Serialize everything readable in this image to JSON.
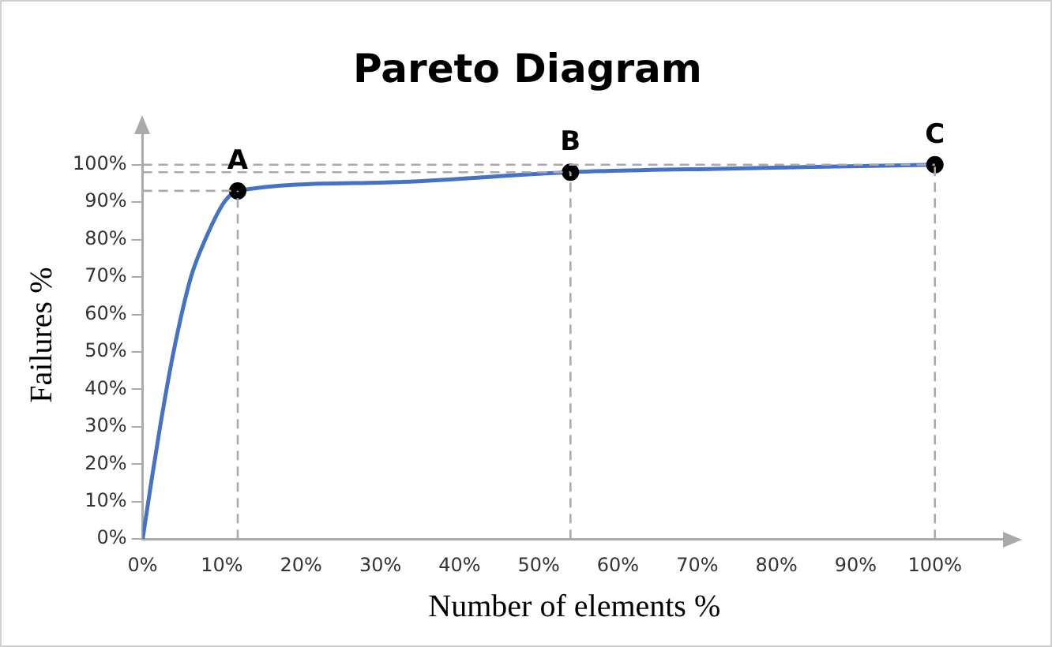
{
  "chart_data": {
    "type": "line",
    "title": "Pareto Diagram",
    "xlabel": "Number of elements %",
    "ylabel": "Failures %",
    "xlim": [
      0,
      109
    ],
    "ylim": [
      0,
      109
    ],
    "xticks": [
      {
        "value": 0,
        "label": "0%"
      },
      {
        "value": 10,
        "label": "10%"
      },
      {
        "value": 20,
        "label": "20%"
      },
      {
        "value": 30,
        "label": "30%"
      },
      {
        "value": 40,
        "label": "40%"
      },
      {
        "value": 50,
        "label": "50%"
      },
      {
        "value": 60,
        "label": "60%"
      },
      {
        "value": 70,
        "label": "70%"
      },
      {
        "value": 80,
        "label": "80%"
      },
      {
        "value": 90,
        "label": "90%"
      },
      {
        "value": 100,
        "label": "100%"
      }
    ],
    "yticks": [
      {
        "value": 0,
        "label": "0%"
      },
      {
        "value": 10,
        "label": "10%"
      },
      {
        "value": 20,
        "label": "20%"
      },
      {
        "value": 30,
        "label": "30%"
      },
      {
        "value": 40,
        "label": "40%"
      },
      {
        "value": 50,
        "label": "50%"
      },
      {
        "value": 60,
        "label": "60%"
      },
      {
        "value": 70,
        "label": "70%"
      },
      {
        "value": 80,
        "label": "80%"
      },
      {
        "value": 90,
        "label": "90%"
      },
      {
        "value": 100,
        "label": "100%"
      }
    ],
    "series": [
      {
        "color": "#4472c4",
        "marker": "none",
        "x": [
          0,
          1,
          2.2,
          3.9,
          6.1,
          7.9,
          10.3,
          12,
          30,
          54,
          75,
          100
        ],
        "values": [
          0,
          14,
          30,
          50,
          70,
          80,
          90,
          93,
          95.2,
          98,
          99,
          100
        ]
      },
      {
        "type": "scatter",
        "color": "#000000",
        "marker": "circle",
        "x": [
          12,
          54,
          100
        ],
        "values": [
          93,
          98,
          100
        ]
      }
    ],
    "annotations": [
      {
        "text": "A",
        "x": 12,
        "y": 93
      },
      {
        "text": "B",
        "x": 54,
        "y": 98
      },
      {
        "text": "C",
        "x": 100,
        "y": 100
      }
    ],
    "ref_lines": [
      {
        "axis": "x",
        "value": 12,
        "color": "#aaaaaa",
        "line_style": "dashed"
      },
      {
        "axis": "x",
        "value": 54,
        "color": "#aaaaaa",
        "line_style": "dashed"
      },
      {
        "axis": "x",
        "value": 100,
        "color": "#aaaaaa",
        "line_style": "dashed"
      },
      {
        "axis": "y",
        "value": 93,
        "color": "#aaaaaa",
        "line_style": "dashed"
      },
      {
        "axis": "y",
        "value": 98,
        "color": "#aaaaaa",
        "line_style": "dashed"
      },
      {
        "axis": "y",
        "value": 100,
        "color": "#aaaaaa",
        "line_style": "dashed"
      }
    ],
    "grid": false,
    "legend": false
  }
}
